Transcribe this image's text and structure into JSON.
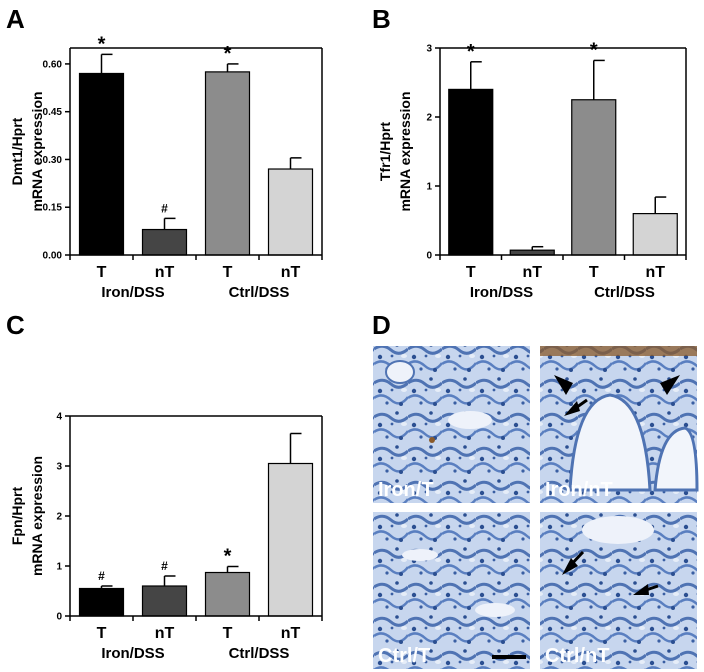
{
  "chart_data": [
    {
      "panel": "A",
      "type": "bar",
      "ylabel_lines": [
        "Dmt1/Hprt",
        "mRNA expression"
      ],
      "ylim": [
        0,
        0.65
      ],
      "yticks": [
        "0.00",
        "0.15",
        "0.30",
        "0.45",
        "0.60"
      ],
      "ytick_values": [
        0,
        0.15,
        0.3,
        0.45,
        0.6
      ],
      "categories": [
        "T",
        "nT",
        "T",
        "nT"
      ],
      "groups": [
        "Iron/DSS",
        "Ctrl/DSS"
      ],
      "values": [
        0.57,
        0.08,
        0.575,
        0.27
      ],
      "errors": [
        0.06,
        0.035,
        0.025,
        0.035
      ],
      "significance": [
        "*",
        "#",
        "*",
        ""
      ],
      "colors": [
        "#000000",
        "#454545",
        "#8c8c8c",
        "#d4d4d4"
      ]
    },
    {
      "panel": "B",
      "type": "bar",
      "ylabel_lines": [
        "Tfr1/Hprt",
        "mRNA expression"
      ],
      "ylim": [
        0,
        3
      ],
      "yticks": [
        "0",
        "1",
        "2",
        "3"
      ],
      "ytick_values": [
        0,
        1,
        2,
        3
      ],
      "categories": [
        "T",
        "nT",
        "T",
        "nT"
      ],
      "groups": [
        "Iron/DSS",
        "Ctrl/DSS"
      ],
      "values": [
        2.4,
        0.07,
        2.25,
        0.6
      ],
      "errors": [
        0.4,
        0.05,
        0.57,
        0.24
      ],
      "significance": [
        "*",
        "",
        "*",
        ""
      ],
      "colors": [
        "#000000",
        "#454545",
        "#8c8c8c",
        "#d4d4d4"
      ]
    },
    {
      "panel": "C",
      "type": "bar",
      "ylabel_lines": [
        "Fpn/Hprt",
        "mRNA expression"
      ],
      "ylim": [
        0,
        4
      ],
      "yticks": [
        "0",
        "1",
        "2",
        "3",
        "4"
      ],
      "ytick_values": [
        0,
        1,
        2,
        3,
        4
      ],
      "categories": [
        "T",
        "nT",
        "T",
        "nT"
      ],
      "groups": [
        "Iron/DSS",
        "Ctrl/DSS"
      ],
      "values": [
        0.55,
        0.6,
        0.87,
        3.05
      ],
      "errors": [
        0.05,
        0.2,
        0.12,
        0.6
      ],
      "significance": [
        "#",
        "#",
        "*",
        ""
      ],
      "colors": [
        "#000000",
        "#454545",
        "#8c8c8c",
        "#d4d4d4"
      ]
    }
  ],
  "panel_d": {
    "letter": "D",
    "images": [
      {
        "label": "Iron/T"
      },
      {
        "label": "Iron/nT"
      },
      {
        "label": "Ctrl/T"
      },
      {
        "label": "Ctrl/nT"
      }
    ],
    "tissue_color": "#6b8fc6",
    "stain_color": "#8a5a2a"
  }
}
